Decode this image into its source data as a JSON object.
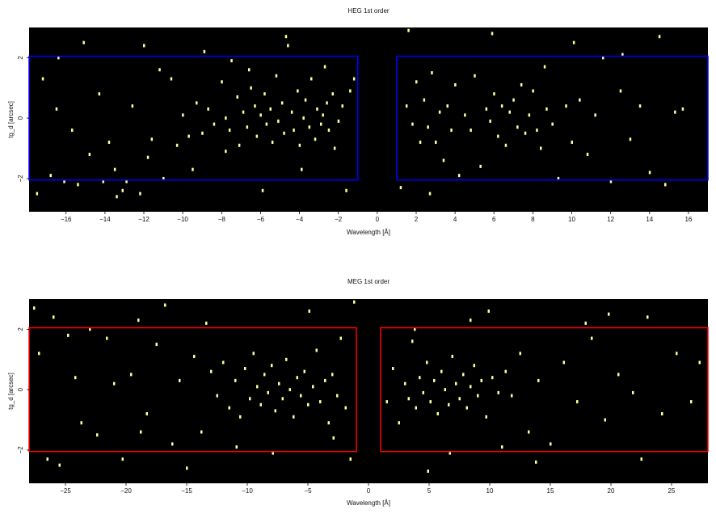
{
  "chart_data": [
    {
      "type": "scatter",
      "title": "HEG 1st order",
      "xlabel": "Wavelength [Å]",
      "ylabel": "tg_d [arcsec]",
      "xlim": [
        -17.9,
        17.0
      ],
      "ylim": [
        -3.1,
        3.0
      ],
      "xticks": [
        -16,
        -14,
        -12,
        -10,
        -8,
        -6,
        -4,
        -2,
        0,
        2,
        4,
        6,
        8,
        10,
        12,
        14,
        16
      ],
      "yticks": [
        -2,
        0,
        2
      ],
      "background": "#000000",
      "point_color": "#ffff99",
      "regions": [
        {
          "x": [
            -17.9,
            -1.0
          ],
          "y": [
            -2.05,
            2.05
          ],
          "color": "#0000ff"
        },
        {
          "x": [
            1.0,
            17.0
          ],
          "y": [
            -2.05,
            2.05
          ],
          "color": "#0000ff"
        }
      ],
      "series": [
        {
          "points": [
            [
              -17.5,
              -2.5
            ],
            [
              -17.2,
              1.3
            ],
            [
              -16.8,
              -1.9
            ],
            [
              -16.5,
              0.3
            ],
            [
              -16.4,
              2.0
            ],
            [
              -16.1,
              -2.1
            ],
            [
              -15.7,
              -0.4
            ],
            [
              -15.4,
              -2.2
            ],
            [
              -15.1,
              2.5
            ],
            [
              -14.8,
              -1.2
            ],
            [
              -14.3,
              0.8
            ],
            [
              -14.1,
              -2.1
            ],
            [
              -13.8,
              -0.8
            ],
            [
              -13.5,
              -1.7
            ],
            [
              -13.1,
              -2.4
            ],
            [
              -12.9,
              -2.1
            ],
            [
              -12.6,
              0.4
            ],
            [
              -12.2,
              -2.5
            ],
            [
              -12.0,
              2.4
            ],
            [
              -11.6,
              -0.7
            ],
            [
              -11.2,
              1.6
            ],
            [
              -11.0,
              -2.0
            ],
            [
              -10.6,
              1.3
            ],
            [
              -10.3,
              -0.9
            ],
            [
              -10.0,
              0.1
            ],
            [
              -9.7,
              -0.6
            ],
            [
              -9.3,
              0.5
            ],
            [
              -9.0,
              -0.5
            ],
            [
              -8.7,
              0.3
            ],
            [
              -8.4,
              -0.2
            ],
            [
              -8.0,
              1.2
            ],
            [
              -7.8,
              0.0
            ],
            [
              -7.6,
              -0.4
            ],
            [
              -7.5,
              1.9
            ],
            [
              -7.2,
              0.7
            ],
            [
              -7.1,
              -0.9
            ],
            [
              -6.9,
              0.2
            ],
            [
              -6.7,
              -0.3
            ],
            [
              -6.5,
              1.0
            ],
            [
              -6.3,
              0.4
            ],
            [
              -6.2,
              -0.6
            ],
            [
              -6.0,
              0.1
            ],
            [
              -5.8,
              0.8
            ],
            [
              -5.7,
              -0.2
            ],
            [
              -5.5,
              0.3
            ],
            [
              -5.4,
              -0.8
            ],
            [
              -5.2,
              1.4
            ],
            [
              -5.1,
              -0.1
            ],
            [
              -4.9,
              0.5
            ],
            [
              -4.8,
              -0.5
            ],
            [
              -4.6,
              2.4
            ],
            [
              -4.4,
              0.2
            ],
            [
              -4.3,
              -0.4
            ],
            [
              -4.1,
              0.9
            ],
            [
              -4.0,
              -0.9
            ],
            [
              -3.8,
              0.0
            ],
            [
              -3.7,
              0.6
            ],
            [
              -3.5,
              -0.3
            ],
            [
              -3.4,
              1.3
            ],
            [
              -3.2,
              -0.7
            ],
            [
              -3.1,
              0.3
            ],
            [
              -2.9,
              -0.2
            ],
            [
              -2.8,
              0.1
            ],
            [
              -2.6,
              0.5
            ],
            [
              -2.5,
              -0.4
            ],
            [
              -2.3,
              0.8
            ],
            [
              -2.2,
              -1.0
            ],
            [
              -2.0,
              -0.1
            ],
            [
              -1.8,
              0.4
            ],
            [
              -1.6,
              -2.4
            ],
            [
              -1.4,
              0.9
            ],
            [
              -1.2,
              1.3
            ],
            [
              -7.8,
              -1.1
            ],
            [
              -6.6,
              1.6
            ],
            [
              -3.9,
              -1.7
            ],
            [
              -2.7,
              1.7
            ],
            [
              -8.9,
              2.2
            ],
            [
              -5.9,
              -2.4
            ],
            [
              -4.7,
              2.7
            ],
            [
              -9.5,
              -1.7
            ],
            [
              -11.8,
              -1.3
            ],
            [
              -13.4,
              -2.6
            ],
            [
              1.2,
              -2.3
            ],
            [
              1.5,
              0.4
            ],
            [
              1.8,
              -0.2
            ],
            [
              2.0,
              1.2
            ],
            [
              2.2,
              -0.8
            ],
            [
              2.4,
              0.6
            ],
            [
              2.6,
              -0.3
            ],
            [
              2.8,
              1.5
            ],
            [
              3.0,
              -0.8
            ],
            [
              3.2,
              0.2
            ],
            [
              3.4,
              -1.4
            ],
            [
              3.6,
              0.4
            ],
            [
              3.8,
              -0.4
            ],
            [
              4.0,
              1.1
            ],
            [
              4.2,
              -1.9
            ],
            [
              4.5,
              0.1
            ],
            [
              4.8,
              -0.4
            ],
            [
              5.0,
              1.4
            ],
            [
              5.3,
              -1.6
            ],
            [
              5.6,
              0.3
            ],
            [
              5.8,
              -0.1
            ],
            [
              6.0,
              0.8
            ],
            [
              6.2,
              -0.6
            ],
            [
              6.4,
              0.4
            ],
            [
              6.6,
              -0.9
            ],
            [
              6.8,
              0.2
            ],
            [
              7.0,
              0.6
            ],
            [
              7.2,
              -0.3
            ],
            [
              7.4,
              1.1
            ],
            [
              7.6,
              -0.5
            ],
            [
              7.8,
              0.1
            ],
            [
              8.0,
              0.9
            ],
            [
              8.2,
              -0.4
            ],
            [
              8.4,
              -1.0
            ],
            [
              8.7,
              0.3
            ],
            [
              9.0,
              -0.2
            ],
            [
              9.3,
              -2.0
            ],
            [
              9.7,
              0.4
            ],
            [
              10.0,
              -0.8
            ],
            [
              10.4,
              0.6
            ],
            [
              10.8,
              -1.2
            ],
            [
              11.2,
              0.1
            ],
            [
              11.6,
              2.0
            ],
            [
              12.0,
              -2.1
            ],
            [
              12.5,
              0.9
            ],
            [
              13.0,
              -0.7
            ],
            [
              13.5,
              0.4
            ],
            [
              14.0,
              -1.8
            ],
            [
              14.5,
              2.7
            ],
            [
              14.8,
              -2.2
            ],
            [
              15.3,
              0.2
            ],
            [
              15.7,
              0.3
            ],
            [
              1.6,
              2.9
            ],
            [
              5.9,
              2.8
            ],
            [
              8.6,
              1.7
            ],
            [
              10.1,
              2.5
            ],
            [
              12.6,
              2.1
            ],
            [
              2.7,
              -2.5
            ]
          ]
        }
      ]
    },
    {
      "type": "scatter",
      "title": "MEG 1st order",
      "xlabel": "Wavelength [Å]",
      "ylabel": "tg_d [arcsec]",
      "xlim": [
        -28.0,
        28.0
      ],
      "ylim": [
        -3.1,
        3.0
      ],
      "xticks": [
        -25,
        -20,
        -15,
        -10,
        -5,
        0,
        5,
        10,
        15,
        20,
        25
      ],
      "yticks": [
        -2,
        0,
        2
      ],
      "background": "#000000",
      "point_color": "#ffff99",
      "regions": [
        {
          "x": [
            -28.0,
            -1.0
          ],
          "y": [
            -2.05,
            2.05
          ],
          "color": "#ff0000"
        },
        {
          "x": [
            1.0,
            28.0
          ],
          "y": [
            -2.05,
            2.05
          ],
          "color": "#ff0000"
        }
      ],
      "series": [
        {
          "points": [
            [
              -27.6,
              2.7
            ],
            [
              -27.2,
              1.2
            ],
            [
              -26.5,
              -2.3
            ],
            [
              -26.0,
              2.4
            ],
            [
              -25.5,
              -2.5
            ],
            [
              -24.8,
              1.8
            ],
            [
              -24.2,
              0.4
            ],
            [
              -23.7,
              -1.1
            ],
            [
              -23.0,
              2.0
            ],
            [
              -22.4,
              -1.5
            ],
            [
              -21.6,
              1.7
            ],
            [
              -21.0,
              0.2
            ],
            [
              -20.3,
              -2.3
            ],
            [
              -19.6,
              0.5
            ],
            [
              -19.0,
              2.3
            ],
            [
              -18.3,
              -0.8
            ],
            [
              -17.5,
              1.5
            ],
            [
              -16.8,
              2.8
            ],
            [
              -16.2,
              -1.8
            ],
            [
              -15.6,
              0.3
            ],
            [
              -15.0,
              -2.6
            ],
            [
              -14.4,
              1.1
            ],
            [
              -13.8,
              -1.4
            ],
            [
              -13.0,
              0.6
            ],
            [
              -12.5,
              -0.2
            ],
            [
              -12.0,
              0.9
            ],
            [
              -11.5,
              -0.6
            ],
            [
              -11.0,
              0.3
            ],
            [
              -10.6,
              -0.9
            ],
            [
              -10.2,
              0.7
            ],
            [
              -9.8,
              -0.3
            ],
            [
              -9.5,
              1.2
            ],
            [
              -9.2,
              0.1
            ],
            [
              -8.9,
              -0.5
            ],
            [
              -8.6,
              0.5
            ],
            [
              -8.3,
              -0.1
            ],
            [
              -8.0,
              0.8
            ],
            [
              -7.7,
              -0.7
            ],
            [
              -7.4,
              0.2
            ],
            [
              -7.1,
              -0.3
            ],
            [
              -6.8,
              1.0
            ],
            [
              -6.5,
              0.0
            ],
            [
              -6.2,
              -0.9
            ],
            [
              -5.9,
              0.4
            ],
            [
              -5.6,
              -0.2
            ],
            [
              -5.3,
              0.6
            ],
            [
              -5.0,
              -0.5
            ],
            [
              -4.6,
              0.1
            ],
            [
              -4.3,
              1.3
            ],
            [
              -4.0,
              -0.4
            ],
            [
              -3.6,
              0.3
            ],
            [
              -3.3,
              -1.1
            ],
            [
              -3.0,
              0.5
            ],
            [
              -2.6,
              -0.2
            ],
            [
              -2.3,
              1.7
            ],
            [
              -1.9,
              -0.6
            ],
            [
              -1.5,
              -2.3
            ],
            [
              -1.2,
              2.9
            ],
            [
              -18.8,
              -1.4
            ],
            [
              -13.4,
              2.2
            ],
            [
              -7.9,
              -2.1
            ],
            [
              -4.9,
              2.6
            ],
            [
              -10.9,
              -1.9
            ],
            [
              -2.9,
              -1.6
            ],
            [
              1.5,
              -0.4
            ],
            [
              2.0,
              0.7
            ],
            [
              2.5,
              -1.1
            ],
            [
              3.0,
              0.2
            ],
            [
              3.3,
              -0.3
            ],
            [
              3.6,
              1.6
            ],
            [
              3.9,
              -0.6
            ],
            [
              4.2,
              0.4
            ],
            [
              4.5,
              -0.1
            ],
            [
              4.8,
              0.9
            ],
            [
              5.1,
              -0.4
            ],
            [
              5.4,
              0.3
            ],
            [
              5.7,
              -0.8
            ],
            [
              6.0,
              0.6
            ],
            [
              6.3,
              0.0
            ],
            [
              6.6,
              -0.5
            ],
            [
              6.9,
              1.1
            ],
            [
              7.2,
              0.2
            ],
            [
              7.5,
              -0.3
            ],
            [
              7.8,
              0.5
            ],
            [
              8.1,
              -0.6
            ],
            [
              8.4,
              0.1
            ],
            [
              8.7,
              0.8
            ],
            [
              9.0,
              -0.2
            ],
            [
              9.3,
              0.3
            ],
            [
              9.7,
              -0.9
            ],
            [
              10.2,
              0.4
            ],
            [
              10.7,
              -0.1
            ],
            [
              11.3,
              0.6
            ],
            [
              11.8,
              -0.2
            ],
            [
              12.5,
              1.2
            ],
            [
              13.2,
              -1.4
            ],
            [
              14.0,
              0.3
            ],
            [
              15.0,
              -1.8
            ],
            [
              16.1,
              0.9
            ],
            [
              17.2,
              -0.4
            ],
            [
              18.4,
              1.7
            ],
            [
              19.5,
              -1.0
            ],
            [
              20.6,
              0.5
            ],
            [
              21.8,
              -0.1
            ],
            [
              23.0,
              2.4
            ],
            [
              24.2,
              -0.8
            ],
            [
              25.4,
              1.2
            ],
            [
              26.6,
              -0.4
            ],
            [
              27.3,
              0.9
            ],
            [
              3.8,
              2.0
            ],
            [
              6.7,
              -2.1
            ],
            [
              9.9,
              2.6
            ],
            [
              13.8,
              -2.4
            ],
            [
              17.9,
              2.2
            ],
            [
              22.5,
              -2.3
            ],
            [
              4.9,
              -2.7
            ],
            [
              8.4,
              2.3
            ],
            [
              11.0,
              -1.9
            ],
            [
              19.8,
              2.5
            ]
          ]
        }
      ]
    }
  ]
}
